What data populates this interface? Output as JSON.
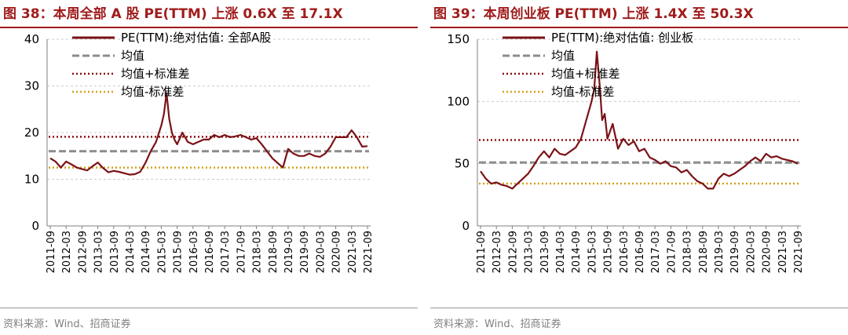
{
  "charts": [
    {
      "figure_title": "图 38：本周全部 A 股 PE(TTM) 上涨 0.6X 至 17.1X",
      "source": "资料来源：Wind、招商证券",
      "legend": [
        "PE(TTM):绝对估值: 全部A股",
        "均值",
        "均值+标准差",
        "均值-标准差"
      ],
      "y_ticks": [
        "0",
        "10",
        "20",
        "30",
        "40"
      ],
      "x_ticks": [
        "2011-09",
        "2012-03",
        "2012-09",
        "2013-03",
        "2013-09",
        "2014-03",
        "2014-09",
        "2015-03",
        "2015-09",
        "2016-03",
        "2016-09",
        "2017-03",
        "2017-09",
        "2018-03",
        "2018-09",
        "2019-03",
        "2019-09",
        "2020-03",
        "2020-09",
        "2021-03",
        "2021-09"
      ]
    },
    {
      "figure_title": "图 39：本周创业板 PE(TTM) 上涨 1.4X 至 50.3X",
      "source": "资料来源：Wind、招商证券",
      "legend": [
        "PE(TTM):绝对估值: 创业板",
        "均值",
        "均值+标准差",
        "均值-标准差"
      ],
      "y_ticks": [
        "0",
        "50",
        "100",
        "150"
      ],
      "x_ticks": [
        "2011-09",
        "2012-03",
        "2012-09",
        "2013-03",
        "2013-09",
        "2014-03",
        "2014-09",
        "2015-03",
        "2015-09",
        "2016-03",
        "2016-09",
        "2017-03",
        "2017-09",
        "2018-03",
        "2018-09",
        "2019-03",
        "2019-09",
        "2020-03",
        "2020-09",
        "2021-03",
        "2021-09"
      ]
    }
  ],
  "chart_data": [
    {
      "type": "line",
      "ylim": [
        0,
        40
      ],
      "x_ticks": [
        "2011-09",
        "2012-03",
        "2012-09",
        "2013-03",
        "2013-09",
        "2014-03",
        "2014-09",
        "2015-03",
        "2015-09",
        "2016-03",
        "2016-09",
        "2017-03",
        "2017-09",
        "2018-03",
        "2018-09",
        "2019-03",
        "2019-09",
        "2020-03",
        "2020-09",
        "2021-03",
        "2021-09"
      ],
      "grid": "horizontal",
      "legend_position": "top",
      "colors": {
        "pe": "#7B1216",
        "mean": "#8C8C8C",
        "mean_plus_std": "#8B0F14",
        "mean_minus_std": "#D4A11E"
      },
      "series": [
        {
          "name": "PE(TTM):绝对估值: 全部A股",
          "x": [
            "2011-09",
            "2011-11",
            "2012-01",
            "2012-03",
            "2012-05",
            "2012-07",
            "2012-09",
            "2012-11",
            "2013-01",
            "2013-03",
            "2013-05",
            "2013-07",
            "2013-09",
            "2013-11",
            "2014-01",
            "2014-03",
            "2014-05",
            "2014-07",
            "2014-09",
            "2014-11",
            "2015-01",
            "2015-03",
            "2015-04",
            "2015-05",
            "2015-06",
            "2015-07",
            "2015-08",
            "2015-09",
            "2015-11",
            "2016-01",
            "2016-03",
            "2016-05",
            "2016-07",
            "2016-09",
            "2016-11",
            "2017-01",
            "2017-03",
            "2017-05",
            "2017-07",
            "2017-09",
            "2017-11",
            "2018-01",
            "2018-03",
            "2018-05",
            "2018-07",
            "2018-09",
            "2018-11",
            "2019-01",
            "2019-03",
            "2019-05",
            "2019-07",
            "2019-09",
            "2019-11",
            "2020-01",
            "2020-03",
            "2020-05",
            "2020-07",
            "2020-09",
            "2020-11",
            "2021-01",
            "2021-03",
            "2021-05",
            "2021-07",
            "2021-09"
          ],
          "values": [
            14.5,
            13.8,
            12.5,
            13.8,
            13.2,
            12.5,
            12.2,
            11.9,
            12.8,
            13.6,
            12.4,
            11.5,
            11.8,
            11.6,
            11.3,
            11.0,
            11.1,
            11.6,
            13.5,
            16.0,
            18.0,
            21.5,
            24.0,
            28.5,
            23.0,
            20.0,
            18.5,
            17.5,
            20.0,
            18.0,
            17.5,
            18.0,
            18.5,
            18.5,
            19.5,
            19.0,
            19.5,
            19.0,
            19.2,
            19.5,
            19.0,
            18.5,
            18.8,
            17.5,
            16.0,
            14.5,
            13.5,
            12.5,
            16.5,
            15.5,
            15.0,
            15.0,
            15.5,
            15.0,
            14.8,
            15.5,
            17.0,
            19.0,
            19.0,
            19.0,
            20.5,
            19.0,
            17.0,
            17.1
          ]
        },
        {
          "name": "均值",
          "values": [
            16.0
          ]
        },
        {
          "name": "均值+标准差",
          "values": [
            19.1
          ]
        },
        {
          "name": "均值-标准差",
          "values": [
            12.5
          ]
        }
      ]
    },
    {
      "type": "line",
      "ylim": [
        0,
        150
      ],
      "x_ticks": [
        "2011-09",
        "2012-03",
        "2012-09",
        "2013-03",
        "2013-09",
        "2014-03",
        "2014-09",
        "2015-03",
        "2015-09",
        "2016-03",
        "2016-09",
        "2017-03",
        "2017-09",
        "2018-03",
        "2018-09",
        "2019-03",
        "2019-09",
        "2020-03",
        "2020-09",
        "2021-03",
        "2021-09"
      ],
      "grid": "horizontal",
      "legend_position": "top",
      "colors": {
        "pe": "#7B1216",
        "mean": "#8C8C8C",
        "mean_plus_std": "#8B0F14",
        "mean_minus_std": "#D4A11E"
      },
      "series": [
        {
          "name": "PE(TTM):绝对估值: 创业板",
          "x": [
            "2011-09",
            "2011-11",
            "2012-01",
            "2012-03",
            "2012-05",
            "2012-07",
            "2012-09",
            "2012-11",
            "2013-01",
            "2013-03",
            "2013-05",
            "2013-07",
            "2013-09",
            "2013-11",
            "2014-01",
            "2014-03",
            "2014-05",
            "2014-07",
            "2014-09",
            "2014-11",
            "2015-01",
            "2015-03",
            "2015-04",
            "2015-05",
            "2015-06",
            "2015-07",
            "2015-08",
            "2015-09",
            "2015-11",
            "2016-01",
            "2016-03",
            "2016-05",
            "2016-07",
            "2016-09",
            "2016-11",
            "2017-01",
            "2017-03",
            "2017-05",
            "2017-07",
            "2017-09",
            "2017-11",
            "2018-01",
            "2018-03",
            "2018-05",
            "2018-07",
            "2018-09",
            "2018-11",
            "2019-01",
            "2019-03",
            "2019-05",
            "2019-07",
            "2019-09",
            "2019-11",
            "2020-01",
            "2020-03",
            "2020-05",
            "2020-07",
            "2020-09",
            "2020-11",
            "2021-01",
            "2021-03",
            "2021-05",
            "2021-07",
            "2021-09"
          ],
          "values": [
            44,
            38,
            34,
            35,
            33,
            32,
            30,
            34,
            38,
            42,
            48,
            55,
            60,
            55,
            62,
            58,
            57,
            60,
            63,
            70,
            85,
            100,
            110,
            140,
            115,
            85,
            90,
            70,
            82,
            62,
            70,
            65,
            68,
            60,
            62,
            55,
            53,
            50,
            52,
            48,
            47,
            43,
            45,
            40,
            36,
            34,
            30,
            30,
            38,
            42,
            40,
            42,
            45,
            48,
            52,
            55,
            52,
            58,
            55,
            56,
            54,
            53,
            52,
            50
          ]
        },
        {
          "name": "均值",
          "values": [
            51
          ]
        },
        {
          "name": "均值+标准差",
          "values": [
            69
          ]
        },
        {
          "name": "均值-标准差",
          "values": [
            34
          ]
        }
      ]
    }
  ]
}
